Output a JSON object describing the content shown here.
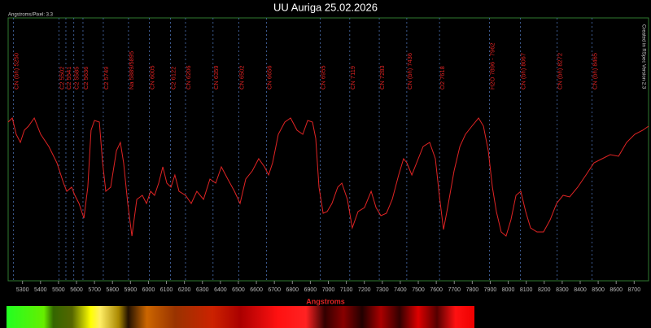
{
  "chart_data": {
    "type": "line",
    "title": "UU Auriga 25.02.2026",
    "subtitle": "Angstroms/Pixel: 3.3",
    "side_note": "Created in RSpec Version 2.3",
    "x_label": "Angstroms",
    "x": [
      5220,
      5243,
      5265,
      5288,
      5310,
      5333,
      5365,
      5401,
      5446,
      5491,
      5528,
      5546,
      5573,
      5591,
      5614,
      5641,
      5663,
      5681,
      5700,
      5727,
      5745,
      5763,
      5790,
      5822,
      5844,
      5862,
      5885,
      5908,
      5935,
      5966,
      5989,
      6012,
      6034,
      6057,
      6080,
      6102,
      6125,
      6147,
      6170,
      6206,
      6238,
      6269,
      6306,
      6342,
      6374,
      6405,
      6441,
      6478,
      6509,
      6541,
      6577,
      6613,
      6645,
      6668,
      6690,
      6722,
      6758,
      6790,
      6826,
      6858,
      6885,
      6912,
      6930,
      6948,
      6971,
      6993,
      7020,
      7052,
      7075,
      7106,
      7133,
      7165,
      7201,
      7238,
      7265,
      7292,
      7323,
      7355,
      7391,
      7418,
      7436,
      7464,
      7491,
      7527,
      7563,
      7595,
      7617,
      7640,
      7663,
      7699,
      7731,
      7762,
      7798,
      7835,
      7862,
      7889,
      7912,
      7934,
      7961,
      7988,
      8015,
      8043,
      8070,
      8097,
      8124,
      8160,
      8196,
      8233,
      8269,
      8305,
      8341,
      8386,
      8432,
      8477,
      8522,
      8567,
      8613,
      8658,
      8703,
      8748,
      8780
    ],
    "series": [
      {
        "color": "#e02424",
        "values": [
          195,
          200,
          180,
          170,
          185,
          190,
          200,
          180,
          165,
          145,
          120,
          110,
          115,
          105,
          95,
          77,
          115,
          185,
          197,
          195,
          145,
          110,
          115,
          160,
          170,
          145,
          95,
          55,
          100,
          105,
          95,
          110,
          105,
          120,
          140,
          120,
          115,
          130,
          110,
          105,
          95,
          110,
          100,
          125,
          120,
          140,
          125,
          110,
          95,
          125,
          135,
          150,
          140,
          130,
          145,
          180,
          195,
          200,
          185,
          180,
          197,
          195,
          175,
          115,
          83,
          85,
          95,
          115,
          120,
          100,
          65,
          85,
          90,
          110,
          90,
          80,
          83,
          100,
          130,
          150,
          145,
          130,
          145,
          165,
          170,
          150,
          105,
          63,
          90,
          135,
          165,
          180,
          190,
          200,
          190,
          160,
          115,
          85,
          60,
          55,
          75,
          105,
          110,
          85,
          65,
          60,
          60,
          75,
          95,
          105,
          103,
          115,
          130,
          145,
          150,
          155,
          153,
          170,
          180,
          185,
          190
        ]
      }
    ],
    "xlim": [
      5220,
      8780
    ],
    "ylim": [
      0,
      323
    ],
    "xticks": [
      5300,
      5400,
      5500,
      5600,
      5700,
      5800,
      5900,
      6000,
      6100,
      6200,
      6300,
      6400,
      6500,
      6600,
      6700,
      6800,
      6900,
      7000,
      7100,
      7200,
      7300,
      7400,
      7500,
      7600,
      7700,
      7800,
      7900,
      8000,
      8100,
      8200,
      8300,
      8400,
      8500,
      8600,
      8700
    ],
    "markers": [
      {
        "value": 5250,
        "label": "CN (bh) 5250"
      },
      {
        "value": 5502,
        "label": "C2 5502"
      },
      {
        "value": 5541,
        "label": "C2 5541"
      },
      {
        "value": 5585,
        "label": "C2 5585"
      },
      {
        "value": 5636,
        "label": "C2 5636"
      },
      {
        "value": 5749,
        "label": "C2 5749"
      },
      {
        "value": 5889,
        "label": "Na 5889/5895"
      },
      {
        "value": 6005,
        "label": "CN 6005"
      },
      {
        "value": 6122,
        "label": "C2 6122"
      },
      {
        "value": 6206,
        "label": "CN 6206"
      },
      {
        "value": 6359,
        "label": "CN 6359"
      },
      {
        "value": 6502,
        "label": "CN 6502"
      },
      {
        "value": 6656,
        "label": "CN 6656"
      },
      {
        "value": 6955,
        "label": "CN 6955"
      },
      {
        "value": 7119,
        "label": "CN 7119"
      },
      {
        "value": 7283,
        "label": "CN 7283"
      },
      {
        "value": 7436,
        "label": "CN (bh) 7436"
      },
      {
        "value": 7618,
        "label": "O2 7618"
      },
      {
        "value": 7896,
        "label": "H2O 7896 - 7962"
      },
      {
        "value": 8067,
        "label": "CN (bh) 8067"
      },
      {
        "value": 8272,
        "label": "CN (bh) 8272"
      },
      {
        "value": 8465,
        "label": "CN (bh) 8465"
      }
    ],
    "marker_color": "#4a6fb0",
    "frame_color": "#2f7a2f"
  }
}
